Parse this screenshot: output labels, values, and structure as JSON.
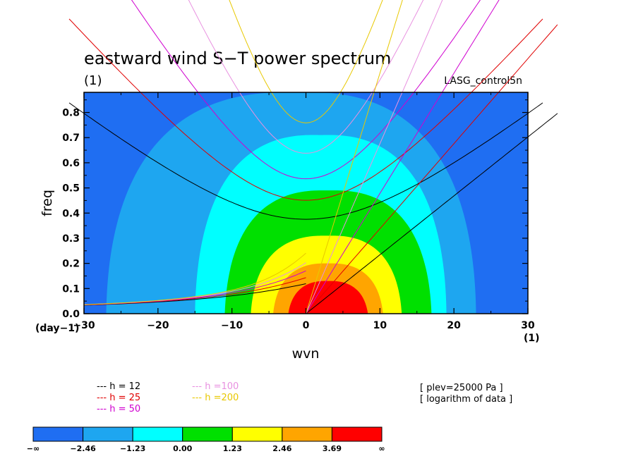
{
  "chart_data": {
    "type": "heatmap",
    "title": "eastward wind S−T power spectrum",
    "title_units": "(1)",
    "dataset": "LASG_control5n",
    "xlabel": "wvn",
    "ylabel": "freq",
    "x_units_left": "(day−1)",
    "x_units_right": "(1)",
    "xlim": [
      -30,
      30
    ],
    "ylim": [
      0,
      0.88
    ],
    "x_ticks": [
      "−30",
      "−20",
      "−10",
      "0",
      "10",
      "20",
      "30"
    ],
    "y_ticks": [
      "0.0",
      "0.1",
      "0.2",
      "0.3",
      "0.4",
      "0.5",
      "0.6",
      "0.7",
      "0.8"
    ],
    "x_tick_values": [
      -30,
      -20,
      -10,
      0,
      10,
      20,
      30
    ],
    "y_tick_values": [
      0,
      0.1,
      0.2,
      0.3,
      0.4,
      0.5,
      0.6,
      0.7,
      0.8
    ],
    "contour_levels": [
      "−∞",
      "−2.46",
      "−1.23",
      "0.00",
      "1.23",
      "2.46",
      "3.69",
      "∞"
    ],
    "contour_colors": [
      "#1f6ef2",
      "#1ea6f0",
      "#00ffff",
      "#00e000",
      "#ffff00",
      "#ffa500",
      "#ff0000"
    ],
    "field_peak": {
      "x": 3,
      "y": 0.08
    },
    "dispersion_curves": [
      {
        "legend": "--- h = 12",
        "h": 12,
        "color": "#000000"
      },
      {
        "legend": "--- h = 25",
        "h": 25,
        "color": "#e00000"
      },
      {
        "legend": "--- h = 50",
        "h": 50,
        "color": "#d000d0"
      },
      {
        "legend": "--- h =100",
        "h": 100,
        "color": "#e890e0"
      },
      {
        "legend": "--- h =200",
        "h": 200,
        "color": "#e8c800"
      }
    ],
    "notes": [
      "[ plev=25000 Pa ]",
      "[ logarithm of data ]"
    ]
  }
}
